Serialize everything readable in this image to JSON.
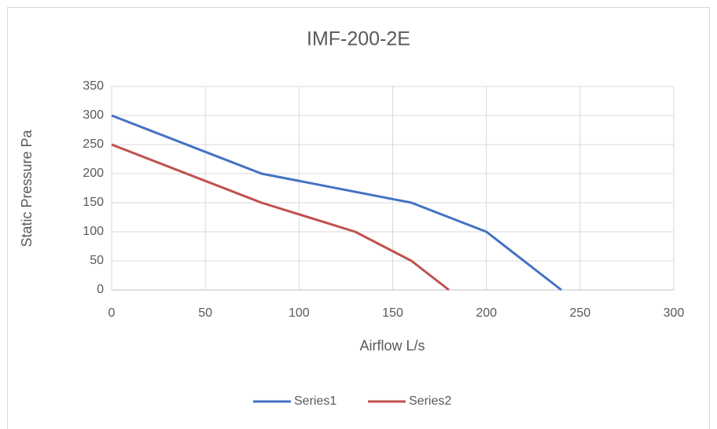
{
  "chart_data": {
    "type": "line",
    "title": "IMF-200-2E",
    "x_label": "Airflow L/s",
    "y_label": "Static Pressure Pa",
    "series": [
      {
        "name": "Series1",
        "color": "#4472c4",
        "x": [
          0,
          80,
          160,
          200,
          240
        ],
        "values": [
          300,
          200,
          150,
          100,
          0
        ]
      },
      {
        "name": "Series2",
        "color": "#c0504d",
        "x": [
          0,
          80,
          130,
          160,
          180
        ],
        "values": [
          250,
          150,
          100,
          50,
          0
        ]
      }
    ],
    "xlim": [
      0,
      300
    ],
    "xticks": [
      0,
      50,
      100,
      150,
      200,
      250,
      300
    ],
    "ylim": [
      0,
      350
    ],
    "yticks": [
      0,
      50,
      100,
      150,
      200,
      250,
      300,
      350
    ],
    "grid": true,
    "legend": "bottom"
  }
}
